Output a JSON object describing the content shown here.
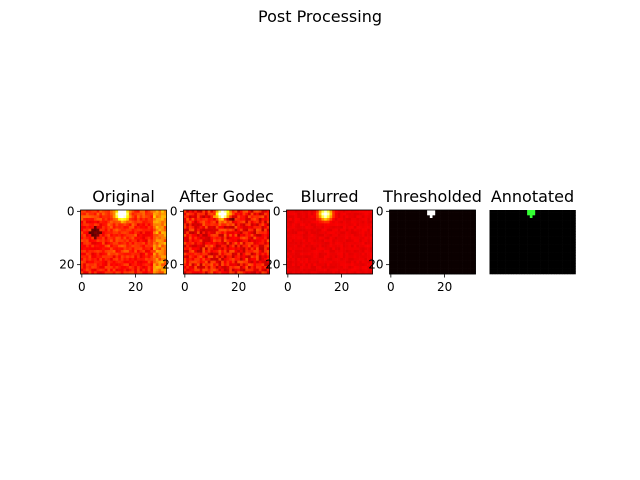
{
  "figure": {
    "title": "Post Processing"
  },
  "chart_data": [
    {
      "type": "heatmap",
      "title": "Original",
      "colormap": "hot",
      "xticks": [
        0,
        20
      ],
      "yticks": [
        0,
        20
      ],
      "xlim": [
        -0.5,
        31.5
      ],
      "ylim": [
        23.5,
        -0.5
      ],
      "grid": false,
      "hotspot": {
        "x": 15,
        "y": 1
      }
    },
    {
      "type": "heatmap",
      "title": "After Godec",
      "colormap": "hot",
      "xticks": [
        0,
        20
      ],
      "yticks": [
        0,
        20
      ],
      "xlim": [
        -0.5,
        31.5
      ],
      "ylim": [
        23.5,
        -0.5
      ],
      "grid": false,
      "hotspot": {
        "x": 14,
        "y": 1
      }
    },
    {
      "type": "heatmap",
      "title": "Blurred",
      "colormap": "hot",
      "xticks": [
        0,
        20
      ],
      "yticks": [
        0,
        20
      ],
      "xlim": [
        -0.5,
        31.5
      ],
      "ylim": [
        23.5,
        -0.5
      ],
      "grid": false,
      "hotspot": {
        "x": 14,
        "y": 1
      }
    },
    {
      "type": "heatmap",
      "title": "Thresholded",
      "colormap": "hot",
      "xticks": [
        0,
        20
      ],
      "yticks": [
        0,
        20
      ],
      "xlim": [
        -0.5,
        31.5
      ],
      "ylim": [
        23.5,
        -0.5
      ],
      "grid": false,
      "hotspot": {
        "x": 15,
        "y": 1
      }
    },
    {
      "type": "heatmap",
      "title": "Annotated",
      "colormap": "green-on-black",
      "xticks": [],
      "yticks": [],
      "axis": "off",
      "xlim": [
        -0.5,
        31.5
      ],
      "ylim": [
        23.5,
        -0.5
      ],
      "grid": false,
      "hotspot": {
        "x": 15,
        "y": 1
      }
    }
  ],
  "colors": {
    "hot_high": "#ffffff",
    "hot_mid": "#ffa000",
    "hot_low": "#cc0000",
    "background_dark": "#0b0000",
    "annotation": "#33ff33"
  }
}
